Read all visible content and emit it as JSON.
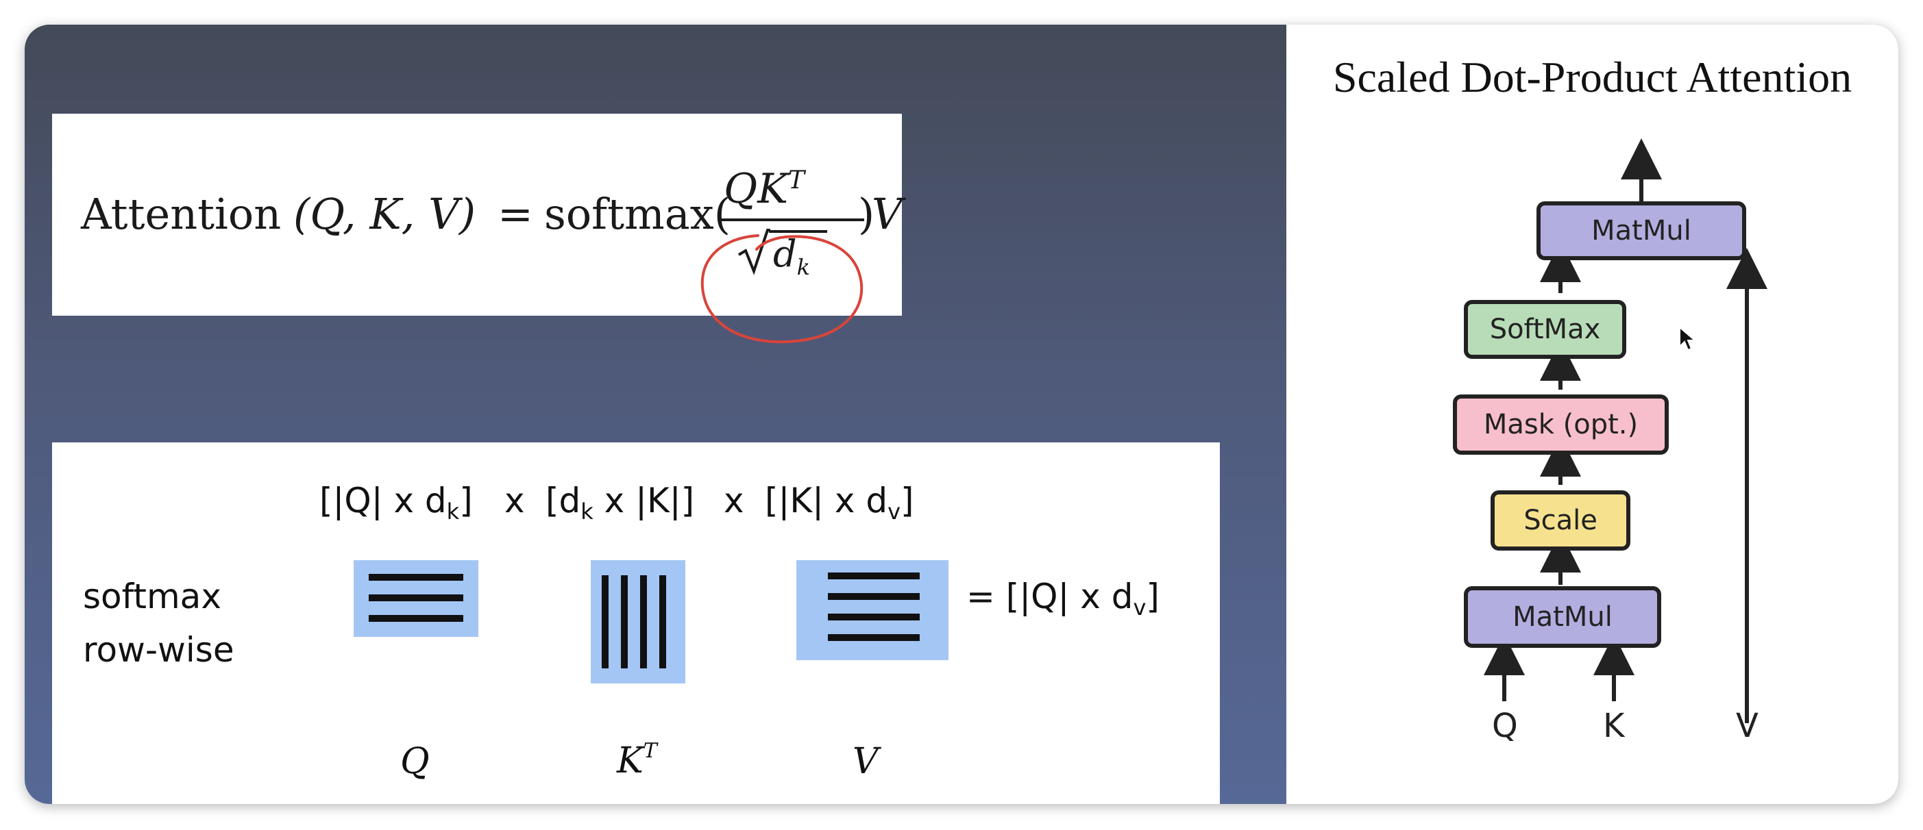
{
  "formula": {
    "lhs": "Attention",
    "args": "(Q, K, V)",
    "eq": "=",
    "fn": "softmax(",
    "numerator": "QK",
    "numerator_sup": "T",
    "denominator": "d",
    "denominator_sub": "k",
    "rparen": ")",
    "tail": "V",
    "annotation_color": "#d9443a"
  },
  "matrix_panel": {
    "dims_q": "[|Q| x d",
    "dims_q_sub": "k",
    "dims_q_end": "]",
    "times_1": "x",
    "dims_kt": "[d",
    "dims_kt_sub": "k",
    "dims_kt_end": " x |K|]",
    "times_2": "x",
    "dims_v": "[|K| x d",
    "dims_v_sub": "v",
    "dims_v_end": "]",
    "softmax_line1": "softmax",
    "softmax_line2": "row-wise",
    "result": "= [|Q| x d",
    "result_sub": "v",
    "result_end": "]",
    "label_q": "Q",
    "label_kt": "K",
    "label_kt_sup": "T",
    "label_v": "V",
    "matrix_fill": "#a3c6f5"
  },
  "diagram": {
    "title": "Scaled Dot-Product Attention",
    "blocks": [
      {
        "label": "MatMul",
        "color": "#b3aee0"
      },
      {
        "label": "SoftMax",
        "color": "#b8dcb8"
      },
      {
        "label": "Mask (opt.)",
        "color": "#f7bfcb"
      },
      {
        "label": "Scale",
        "color": "#f6e28e"
      },
      {
        "label": "MatMul",
        "color": "#b3aee0"
      }
    ],
    "inputs": [
      "Q",
      "K",
      "V"
    ]
  }
}
